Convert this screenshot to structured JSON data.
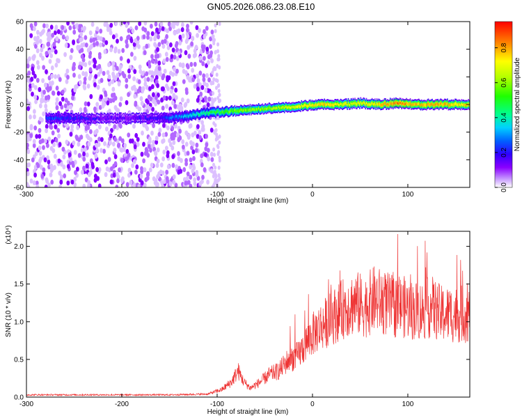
{
  "title": "GN05.2026.086.23.08.E10",
  "chart_data": [
    {
      "type": "heatmap",
      "title": "GN05.2026.086.23.08.E10",
      "xlabel": "Height of straight line (km)",
      "ylabel": "Frequency (Hz)",
      "xlim": [
        -300,
        165
      ],
      "ylim": [
        -60,
        60
      ],
      "xticks": [
        "-300",
        "-200",
        "-100",
        "0",
        "100"
      ],
      "xtick_values": [
        -300,
        -200,
        -100,
        0,
        100
      ],
      "yticks": [
        "-60",
        "-40",
        "-20",
        "0",
        "20",
        "40",
        "60"
      ],
      "ytick_values": [
        -60,
        -40,
        -20,
        0,
        20,
        40,
        60
      ],
      "colorbar": {
        "label": "Normalized spectral amplitude",
        "range": [
          0,
          0.95
        ],
        "ticks": [
          "0.0",
          "0.2",
          "0.4",
          "0.6",
          "0.8"
        ],
        "tick_values": [
          0.0,
          0.2,
          0.4,
          0.6,
          0.8
        ],
        "colors": [
          "#ffffff",
          "#8a00ff",
          "#3000ff",
          "#0060ff",
          "#00ffff",
          "#00ff60",
          "#a0ff00",
          "#ffff00",
          "#ff8000",
          "#ff0000"
        ]
      },
      "ridge": {
        "x": [
          -280,
          -250,
          -220,
          -190,
          -160,
          -130,
          -110,
          -90,
          -70,
          -50,
          -30,
          -10,
          10,
          30,
          50,
          70,
          90,
          110,
          130,
          150,
          165
        ],
        "freq": [
          -10,
          -10,
          -10,
          -10,
          -10,
          -8,
          -6,
          -5,
          -4,
          -3,
          -2,
          -1,
          0,
          0,
          1,
          0,
          1,
          0,
          0,
          0,
          0
        ],
        "amplitude": [
          0.25,
          0.2,
          0.15,
          0.15,
          0.2,
          0.35,
          0.45,
          0.55,
          0.6,
          0.6,
          0.65,
          0.7,
          0.75,
          0.7,
          0.7,
          0.75,
          0.85,
          0.75,
          0.8,
          0.75,
          0.75
        ]
      },
      "noise_region": [
        -300,
        -105
      ]
    },
    {
      "type": "line",
      "xlabel": "Height of straight line (km)",
      "ylabel": "SNR (10 * v/v)",
      "ylabel_multiplier": "(x10⁴)",
      "xlim": [
        -300,
        165
      ],
      "ylim": [
        0,
        2.2
      ],
      "xticks": [
        "-300",
        "-200",
        "-100",
        "0",
        "100"
      ],
      "xtick_values": [
        -300,
        -200,
        -100,
        0,
        100
      ],
      "yticks": [
        "0.0",
        "0.5",
        "1.0",
        "1.5",
        "2.0"
      ],
      "ytick_values": [
        0.0,
        0.5,
        1.0,
        1.5,
        2.0
      ],
      "color": "#ee3333",
      "series": [
        {
          "name": "SNR",
          "x": [
            -300,
            -250,
            -200,
            -150,
            -110,
            -95,
            -85,
            -78,
            -72,
            -65,
            -55,
            -45,
            -35,
            -25,
            -15,
            -5,
            5,
            15,
            25,
            35,
            45,
            55,
            65,
            75,
            85,
            95,
            105,
            115,
            125,
            135,
            145,
            155,
            165
          ],
          "y": [
            0.03,
            0.03,
            0.03,
            0.03,
            0.04,
            0.1,
            0.2,
            0.35,
            0.2,
            0.12,
            0.2,
            0.3,
            0.35,
            0.5,
            0.55,
            0.75,
            0.9,
            1.0,
            1.1,
            1.2,
            1.25,
            1.2,
            1.3,
            1.25,
            1.2,
            1.2,
            1.15,
            1.15,
            1.2,
            1.1,
            1.1,
            1.1,
            1.1
          ]
        }
      ]
    }
  ]
}
